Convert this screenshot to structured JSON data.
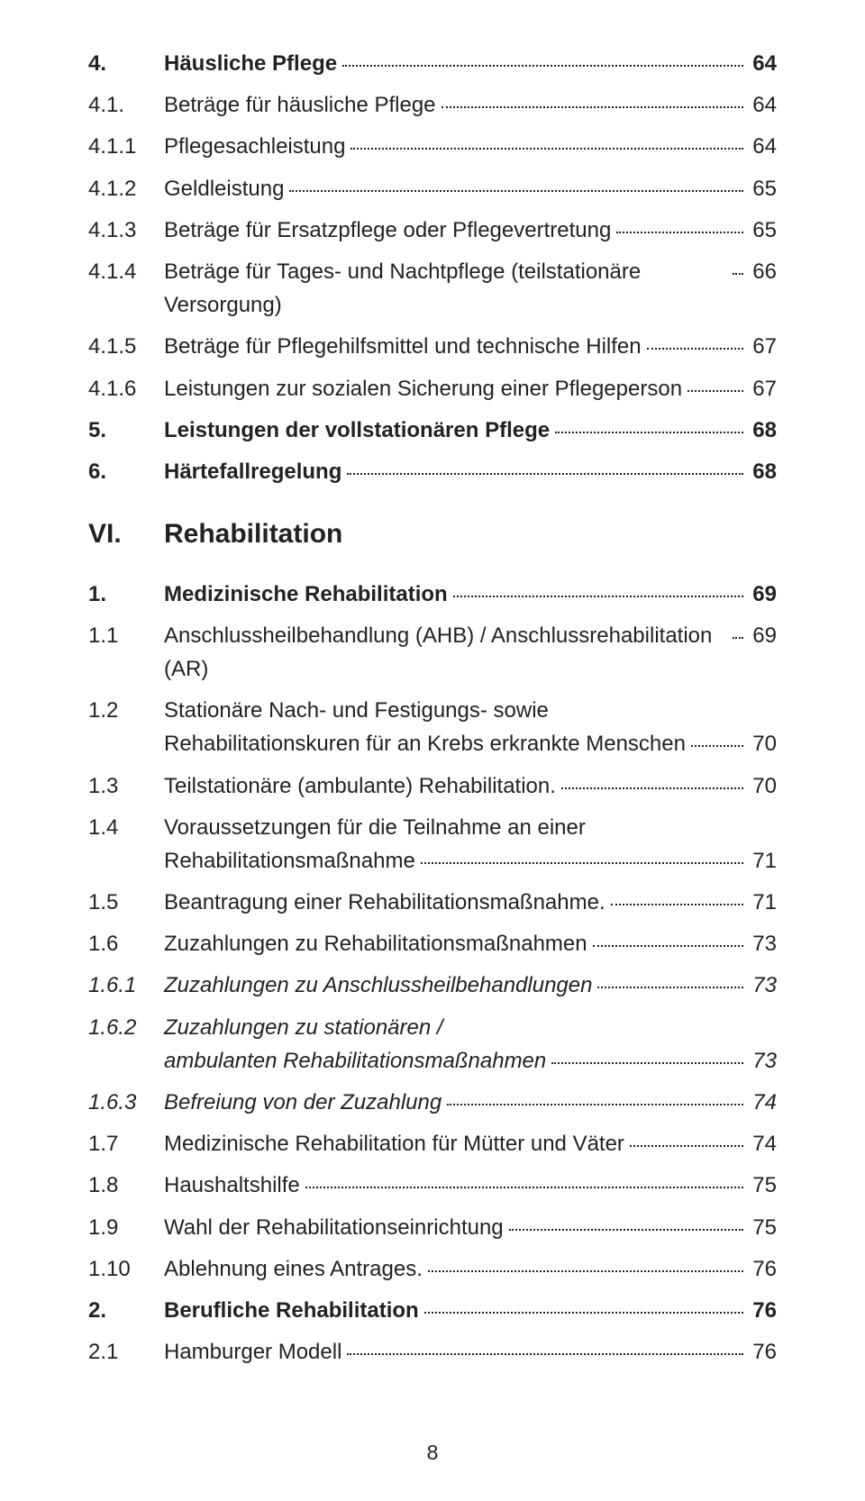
{
  "pageNumber": "8",
  "sectionHead": {
    "num": "VI.",
    "label": "Rehabilitation"
  },
  "entries": [
    {
      "num": "4.",
      "label": "Häusliche Pflege",
      "page": "64",
      "bold": true
    },
    {
      "num": "4.1.",
      "label": "Beträge für häusliche Pflege",
      "page": "64"
    },
    {
      "num": "4.1.1",
      "label": "Pflegesachleistung",
      "page": "64"
    },
    {
      "num": "4.1.2",
      "label": "Geldleistung",
      "page": "65"
    },
    {
      "num": "4.1.3",
      "label": "Beträge für Ersatzpflege oder Pflegevertretung",
      "page": "65"
    },
    {
      "num": "4.1.4",
      "label": "Beträge für Tages- und Nachtpflege (teilstationäre Versorgung)",
      "page": "66"
    },
    {
      "num": "4.1.5",
      "label": "Beträge für Pflegehilfsmittel und technische Hilfen",
      "page": "67"
    },
    {
      "num": "4.1.6",
      "label": "Leistungen zur sozialen Sicherung einer Pflegeperson",
      "page": "67"
    },
    {
      "num": "5.",
      "label": "Leistungen der vollstationären Pflege",
      "page": "68",
      "bold": true
    },
    {
      "num": "6.",
      "label": "Härtefallregelung",
      "page": "68",
      "bold": true
    },
    {
      "type": "head"
    },
    {
      "num": "1.",
      "label": "Medizinische Rehabilitation",
      "page": "69",
      "bold": true
    },
    {
      "num": "1.1",
      "label": "Anschlussheilbehandlung (AHB) / Anschlussrehabilitation (AR)",
      "page": "69"
    },
    {
      "num": "1.2",
      "line1": "Stationäre Nach- und Festigungs- sowie",
      "line2": "Rehabilitationskuren für an Krebs erkrankte Menschen",
      "page": "70",
      "multi": true
    },
    {
      "num": "1.3",
      "label": "Teilstationäre (ambulante) Rehabilitation.",
      "page": "70"
    },
    {
      "num": "1.4",
      "line1": "Voraussetzungen für die Teilnahme an einer",
      "line2": "Rehabilitationsmaßnahme",
      "page": "71",
      "multi": true
    },
    {
      "num": "1.5",
      "label": "Beantragung einer Rehabilitationsmaßnahme.",
      "page": "71"
    },
    {
      "num": "1.6",
      "label": "Zuzahlungen zu Rehabilitationsmaßnahmen",
      "page": "73"
    },
    {
      "num": "1.6.1",
      "label": "Zuzahlungen zu Anschlussheilbehandlungen",
      "page": "73",
      "italic": true
    },
    {
      "num": "1.6.2",
      "line1": "Zuzahlungen zu stationären /",
      "line2": "ambulanten Rehabilitationsmaßnahmen",
      "page": "73",
      "italic": true,
      "multi": true
    },
    {
      "num": "1.6.3",
      "label": "Befreiung von der Zuzahlung",
      "page": "74",
      "italic": true
    },
    {
      "num": "1.7",
      "label": "Medizinische Rehabilitation für Mütter und Väter",
      "page": "74"
    },
    {
      "num": "1.8",
      "label": "Haushaltshilfe",
      "page": "75"
    },
    {
      "num": "1.9",
      "label": "Wahl der Rehabilitationseinrichtung",
      "page": "75"
    },
    {
      "num": "1.10",
      "label": "Ablehnung eines Antrages.",
      "page": "76"
    },
    {
      "num": "2.",
      "label": "Berufliche Rehabilitation",
      "page": "76",
      "bold": true
    },
    {
      "num": "2.1",
      "label": "Hamburger Modell",
      "page": "76"
    }
  ]
}
